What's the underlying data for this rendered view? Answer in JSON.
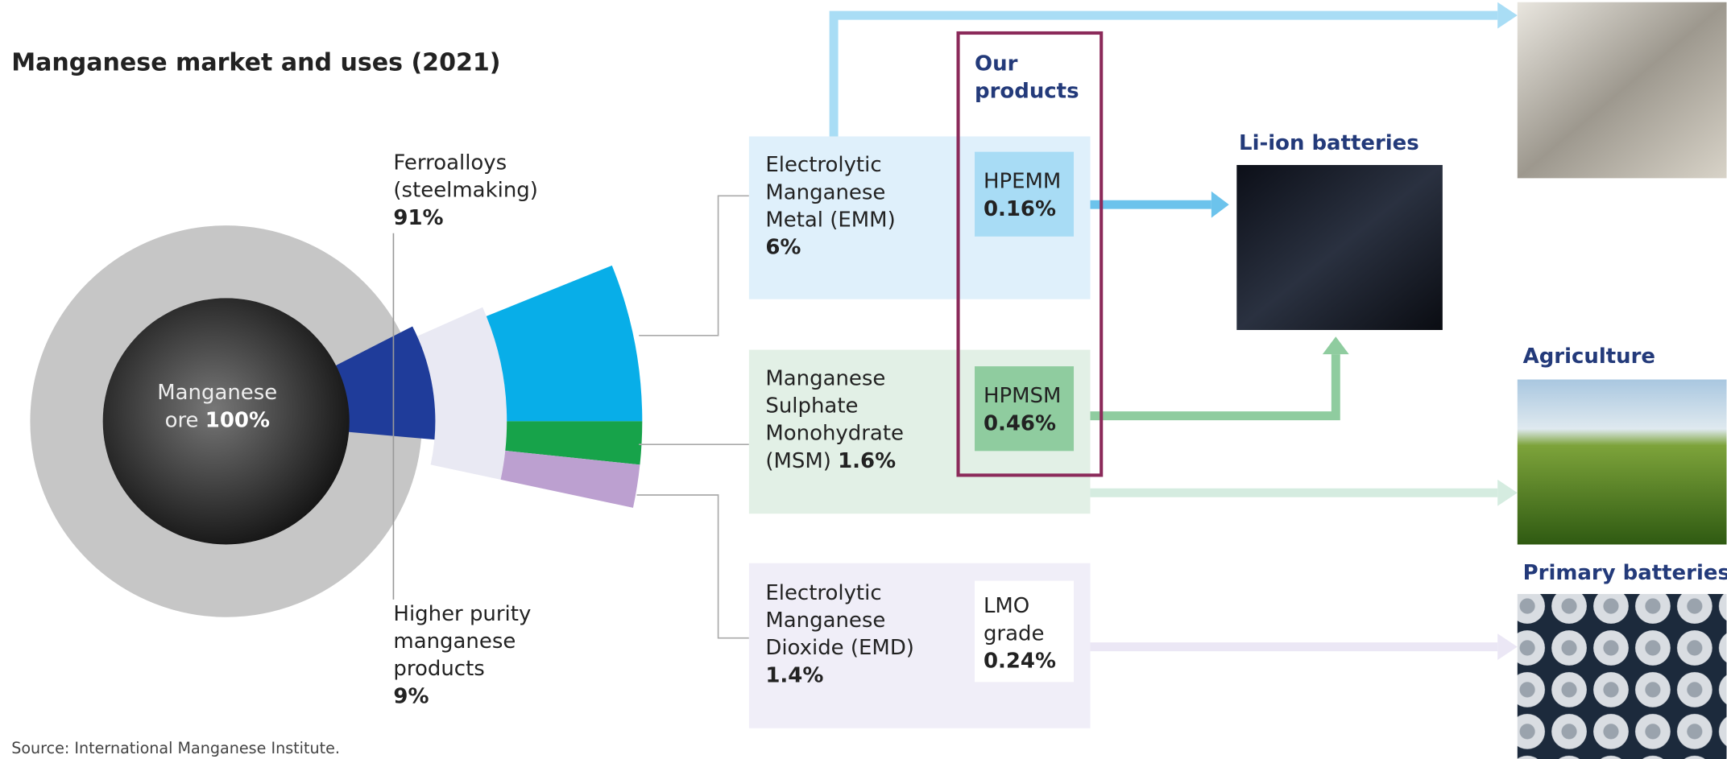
{
  "title": "Manganese market and uses (2021)",
  "source": "Source: International Manganese Institute.",
  "ore": {
    "name": [
      "Manganese",
      "ore"
    ],
    "share": "100%"
  },
  "segments": [
    {
      "name": [
        "Ferroalloys",
        "(steelmaking)"
      ],
      "share": "91%"
    },
    {
      "name": [
        "Higher purity",
        "manganese",
        "products"
      ],
      "share": "9%"
    }
  ],
  "products_header": [
    "Our",
    "products"
  ],
  "categories": [
    {
      "name": [
        "Electrolytic",
        "Manganese",
        "Metal (EMM)"
      ],
      "share": "6%",
      "product": [
        "HPEMM"
      ],
      "product_share": "0.16%"
    },
    {
      "name": [
        "Manganese",
        "Sulphate",
        "Monohydrate",
        "(MSM)"
      ],
      "share": "1.6%",
      "product": [
        "HPMSM"
      ],
      "product_share": "0.46%"
    },
    {
      "name": [
        "Electrolytic",
        "Manganese",
        "Dioxide (EMD)"
      ],
      "share": "1.4%",
      "product": [
        "LMO",
        "grade"
      ],
      "product_share": "0.24%"
    }
  ],
  "uses": [
    "Li-ion batteries",
    "Agriculture",
    "Primary batteries"
  ]
}
